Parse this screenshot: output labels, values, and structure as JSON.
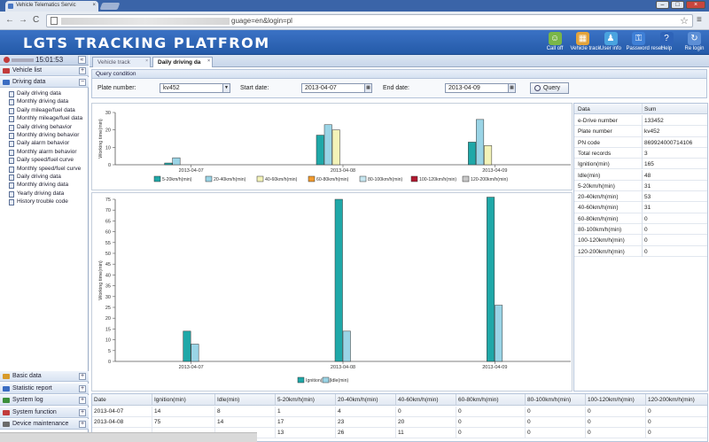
{
  "browser": {
    "tab_title": "Vehicle Telematics Servic",
    "url_visible": "guage=en&login=pl",
    "close_tab": "×",
    "nav": {
      "back": "←",
      "forward": "→",
      "reload": "C"
    },
    "star": "☆",
    "menu": "≡",
    "window_buttons": {
      "minimize": "–",
      "maximize": "□",
      "close": "×"
    }
  },
  "header": {
    "title": "LGTS TRACKING PLATFROM",
    "actions": [
      {
        "label": "Call off",
        "icon": "person-icon",
        "color": "#7ab648"
      },
      {
        "label": "Vehicle track",
        "icon": "map-icon",
        "color": "#e3a33b"
      },
      {
        "label": "User info",
        "icon": "user-info-icon",
        "color": "#4aa3df"
      },
      {
        "label": "Password reset",
        "icon": "lock-icon",
        "color": "#3e7fd6"
      },
      {
        "label": "Help",
        "icon": "help-icon",
        "color": "#2e63b8"
      },
      {
        "label": "Re login",
        "icon": "relogin-icon",
        "color": "#5d8fd6"
      }
    ]
  },
  "sidebar": {
    "clock": "15:01:53",
    "collapse": "«",
    "sections_top": [
      {
        "label": "Vehicle list",
        "toggle": "+",
        "color": "#c23b3b"
      },
      {
        "label": "Driving data",
        "toggle": "−",
        "color": "#3a6cc2"
      }
    ],
    "tree": [
      "Daily driving data",
      "Monthly driving data",
      "Daily mileage/fuel data",
      "Monthly mileage/fuel data",
      "Daily driving behavior",
      "Monthly driving behavior",
      "Daily alarm behavior",
      "Monthly alarm behavior",
      "Daily speed/fuel curve",
      "Monthly speed/fuel curve",
      "Daily driving data",
      "Monthly driving data",
      "Yearly driving data",
      "History trouble code"
    ],
    "sections_bottom": [
      {
        "label": "Basic data",
        "toggle": "+",
        "color": "#d89b2b"
      },
      {
        "label": "Statistic report",
        "toggle": "+",
        "color": "#3a6cc2"
      },
      {
        "label": "System log",
        "toggle": "+",
        "color": "#3b8f3b"
      },
      {
        "label": "System function",
        "toggle": "+",
        "color": "#c23b3b"
      },
      {
        "label": "Device maintenance",
        "toggle": "+",
        "color": "#6a6a6a"
      }
    ]
  },
  "tabs": [
    {
      "label": "Vehicle track",
      "active": false,
      "close": "×"
    },
    {
      "label": "Daily driving da",
      "active": true,
      "close": "×"
    }
  ],
  "query": {
    "section_title": "Query condition",
    "plate_label": "Plate number:",
    "plate_value": "kv452",
    "start_label": "Start date:",
    "start_value": "2013-04-07",
    "end_label": "End date:",
    "end_value": "2013-04-09",
    "query_button": "Query",
    "dropdown_arrow": "▼",
    "calendar_glyph": "▦"
  },
  "chart_data": [
    {
      "type": "bar",
      "ylabel": "Working time(min)",
      "ylim": [
        0,
        30
      ],
      "yticks": [
        0,
        10,
        20,
        30
      ],
      "categories": [
        "2013-04-07",
        "2013-04-08",
        "2013-04-09"
      ],
      "series": [
        {
          "name": "5-20km/h(min)",
          "color": "#1fa8a8",
          "values": [
            1,
            17,
            13
          ]
        },
        {
          "name": "20-40km/h(min)",
          "color": "#9ad4e6",
          "values": [
            4,
            23,
            26
          ]
        },
        {
          "name": "40-60km/h(min)",
          "color": "#f3f3b8",
          "values": [
            0,
            20,
            11
          ]
        },
        {
          "name": "60-80km/h(min)",
          "color": "#f19a2d",
          "values": [
            0,
            0,
            0
          ]
        },
        {
          "name": "80-100km/h(min)",
          "color": "#c6e6f0",
          "values": [
            0,
            0,
            0
          ]
        },
        {
          "name": "100-120km/h(min)",
          "color": "#b01830",
          "values": [
            0,
            0,
            0
          ]
        },
        {
          "name": "120-200km/h(min)",
          "color": "#c8c8c8",
          "values": [
            0,
            0,
            0
          ]
        }
      ]
    },
    {
      "type": "bar",
      "ylabel": "Working time(min)",
      "ylim": [
        0,
        75
      ],
      "yticks": [
        0,
        5,
        10,
        15,
        20,
        25,
        30,
        35,
        40,
        45,
        50,
        55,
        60,
        65,
        70,
        75
      ],
      "categories": [
        "2013-04-07",
        "2013-04-08",
        "2013-04-09"
      ],
      "series": [
        {
          "name": "Ignition(min)",
          "color": "#1fa8a8",
          "values": [
            14,
            75,
            76
          ]
        },
        {
          "name": "Idle(min)",
          "color": "#9ad4e6",
          "values": [
            8,
            14,
            26
          ]
        }
      ]
    }
  ],
  "info_table": {
    "headers": [
      "Data",
      "Sum"
    ],
    "rows": [
      [
        "e-Drive number",
        "133452"
      ],
      [
        "Plate number",
        "kv452"
      ],
      [
        "PN code",
        "869924000714106"
      ],
      [
        "Total records",
        "3"
      ],
      [
        "Ignition(min)",
        "165"
      ],
      [
        "Idle(min)",
        "48"
      ],
      [
        "5-20km/h(min)",
        "31"
      ],
      [
        "20-40km/h(min)",
        "53"
      ],
      [
        "40-60km/h(min)",
        "31"
      ],
      [
        "60-80km/h(min)",
        "0"
      ],
      [
        "80-100km/h(min)",
        "0"
      ],
      [
        "100-120km/h(min)",
        "0"
      ],
      [
        "120-200km/h(min)",
        "0"
      ]
    ]
  },
  "bottom_table": {
    "headers": [
      "Date",
      "Ignition(min)",
      "Idle(min)",
      "5-20km/h(min)",
      "20-40km/h(min)",
      "40-60km/h(min)",
      "60-80km/h(min)",
      "80-100km/h(min)",
      "100-120km/h(min)",
      "120-200km/h(min)"
    ],
    "rows": [
      [
        "2013-04-07",
        "14",
        "8",
        "1",
        "4",
        "0",
        "0",
        "0",
        "0",
        "0"
      ],
      [
        "2013-04-08",
        "75",
        "14",
        "17",
        "23",
        "20",
        "0",
        "0",
        "0",
        "0"
      ],
      [
        "",
        "",
        "",
        "13",
        "26",
        "11",
        "0",
        "0",
        "0",
        "0"
      ]
    ]
  }
}
